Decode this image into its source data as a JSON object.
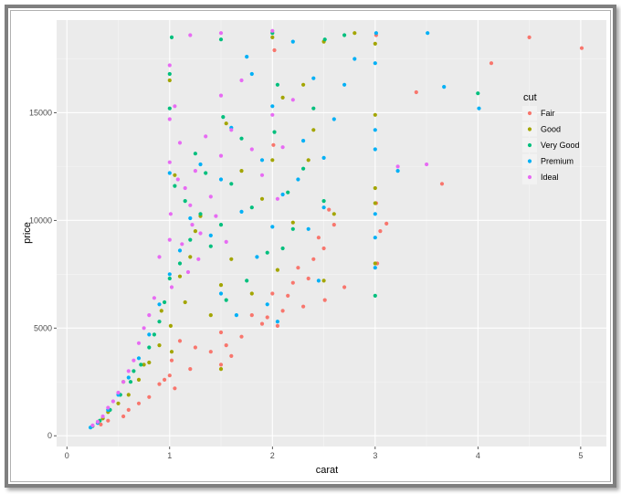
{
  "chart_data": {
    "type": "scatter",
    "title": "",
    "xlabel": "carat",
    "ylabel": "price",
    "xlim": [
      -0.1,
      5.25
    ],
    "ylim": [
      -500,
      19300
    ],
    "x_ticks": [
      0,
      1,
      2,
      3,
      4,
      5
    ],
    "x_tick_labels": [
      "0",
      "1",
      "2",
      "3",
      "4",
      "5"
    ],
    "y_ticks": [
      0,
      5000,
      10000,
      15000
    ],
    "y_tick_labels": [
      "0",
      "5000",
      "10000",
      "15000"
    ],
    "grid": true,
    "panel_background": "#ebebeb",
    "legend": {
      "title": "cut",
      "position": "right",
      "entries": [
        {
          "label": "Fair",
          "color": "#F8766D"
        },
        {
          "label": "Good",
          "color": "#A3A500"
        },
        {
          "label": "Very Good",
          "color": "#00BF7D"
        },
        {
          "label": "Premium",
          "color": "#00B0F6"
        },
        {
          "label": "Ideal",
          "color": "#E76BF3"
        }
      ]
    },
    "series": [
      {
        "name": "Fair",
        "color": "#F8766D",
        "points": [
          [
            5.01,
            18000
          ],
          [
            4.5,
            18500
          ],
          [
            4.13,
            17300
          ],
          [
            3.4,
            15950
          ],
          [
            3.65,
            11700
          ],
          [
            3.01,
            18600
          ],
          [
            3.01,
            10800
          ],
          [
            3.11,
            9850
          ],
          [
            3.02,
            8000
          ],
          [
            3.05,
            9500
          ],
          [
            2.02,
            17900
          ],
          [
            2.5,
            8700
          ],
          [
            2.51,
            6300
          ],
          [
            2.7,
            6900
          ],
          [
            2.4,
            8200
          ],
          [
            2.2,
            7100
          ],
          [
            2.1,
            5800
          ],
          [
            2.0,
            6600
          ],
          [
            1.9,
            5200
          ],
          [
            2.3,
            6000
          ],
          [
            2.35,
            7300
          ],
          [
            1.8,
            5600
          ],
          [
            1.7,
            4600
          ],
          [
            1.6,
            3700
          ],
          [
            1.55,
            4200
          ],
          [
            1.5,
            3300
          ],
          [
            1.5,
            4800
          ],
          [
            1.0,
            2800
          ],
          [
            1.02,
            3500
          ],
          [
            1.2,
            3100
          ],
          [
            0.9,
            2400
          ],
          [
            0.8,
            1800
          ],
          [
            0.7,
            1500
          ],
          [
            0.55,
            900
          ],
          [
            0.4,
            700
          ],
          [
            0.33,
            520
          ],
          [
            1.05,
            2200
          ],
          [
            2.05,
            5100
          ],
          [
            2.15,
            6500
          ],
          [
            2.45,
            9200
          ],
          [
            1.25,
            4100
          ],
          [
            1.4,
            3900
          ],
          [
            0.6,
            1200
          ],
          [
            1.1,
            4400
          ],
          [
            2.25,
            7800
          ],
          [
            2.01,
            13500
          ],
          [
            2.6,
            9800
          ],
          [
            1.95,
            5500
          ],
          [
            2.55,
            10500
          ],
          [
            0.95,
            2600
          ]
        ]
      },
      {
        "name": "Good",
        "color": "#A3A500",
        "points": [
          [
            2.8,
            18700
          ],
          [
            3.0,
            18200
          ],
          [
            3.0,
            14900
          ],
          [
            3.0,
            11500
          ],
          [
            3.0,
            10800
          ],
          [
            3.0,
            8000
          ],
          [
            2.0,
            18500
          ],
          [
            2.5,
            18300
          ],
          [
            2.3,
            16300
          ],
          [
            2.1,
            15700
          ],
          [
            2.0,
            12800
          ],
          [
            1.9,
            11000
          ],
          [
            1.6,
            8200
          ],
          [
            1.5,
            7000
          ],
          [
            1.5,
            3100
          ],
          [
            1.4,
            5600
          ],
          [
            1.2,
            8300
          ],
          [
            1.0,
            16500
          ],
          [
            1.01,
            5100
          ],
          [
            1.02,
            3900
          ],
          [
            0.9,
            4200
          ],
          [
            0.8,
            3400
          ],
          [
            0.7,
            2600
          ],
          [
            0.6,
            1900
          ],
          [
            0.5,
            1500
          ],
          [
            0.4,
            1100
          ],
          [
            0.3,
            600
          ],
          [
            2.2,
            9900
          ],
          [
            2.4,
            14200
          ],
          [
            1.7,
            12300
          ],
          [
            1.3,
            10200
          ],
          [
            1.1,
            7400
          ],
          [
            0.92,
            5800
          ],
          [
            2.05,
            7700
          ],
          [
            1.8,
            6600
          ],
          [
            2.6,
            10300
          ],
          [
            1.55,
            14500
          ],
          [
            2.5,
            7200
          ],
          [
            0.75,
            3300
          ],
          [
            1.15,
            6200
          ],
          [
            0.55,
            2500
          ],
          [
            0.35,
            800
          ],
          [
            1.05,
            12100
          ],
          [
            1.25,
            9500
          ],
          [
            2.35,
            12800
          ]
        ]
      },
      {
        "name": "Very Good",
        "color": "#00BF7D",
        "points": [
          [
            4.0,
            15900
          ],
          [
            3.0,
            6500
          ],
          [
            2.51,
            18400
          ],
          [
            2.7,
            18600
          ],
          [
            2.0,
            18700
          ],
          [
            1.5,
            18400
          ],
          [
            1.02,
            18500
          ],
          [
            1.0,
            16800
          ],
          [
            1.0,
            15200
          ],
          [
            2.3,
            12400
          ],
          [
            2.2,
            9600
          ],
          [
            2.5,
            10900
          ],
          [
            2.1,
            8700
          ],
          [
            1.8,
            10600
          ],
          [
            1.7,
            13800
          ],
          [
            1.6,
            11700
          ],
          [
            1.5,
            9800
          ],
          [
            1.4,
            8800
          ],
          [
            1.3,
            10300
          ],
          [
            1.2,
            9100
          ],
          [
            1.1,
            8000
          ],
          [
            1.0,
            7300
          ],
          [
            0.95,
            6200
          ],
          [
            0.9,
            5300
          ],
          [
            0.8,
            4100
          ],
          [
            0.72,
            3300
          ],
          [
            0.62,
            2500
          ],
          [
            0.52,
            1900
          ],
          [
            0.42,
            1200
          ],
          [
            0.32,
            700
          ],
          [
            0.25,
            450
          ],
          [
            1.05,
            11600
          ],
          [
            1.52,
            14800
          ],
          [
            2.02,
            14100
          ],
          [
            2.4,
            15200
          ],
          [
            1.25,
            13100
          ],
          [
            1.75,
            7200
          ],
          [
            2.05,
            16300
          ],
          [
            1.15,
            10900
          ],
          [
            0.85,
            4700
          ],
          [
            0.65,
            3000
          ],
          [
            1.35,
            12200
          ],
          [
            2.15,
            11300
          ],
          [
            1.95,
            8500
          ],
          [
            1.55,
            6300
          ]
        ]
      },
      {
        "name": "Premium",
        "color": "#00B0F6",
        "points": [
          [
            3.51,
            18700
          ],
          [
            4.01,
            15200
          ],
          [
            3.67,
            16200
          ],
          [
            3.01,
            18700
          ],
          [
            3.0,
            17300
          ],
          [
            3.0,
            14200
          ],
          [
            3.0,
            13300
          ],
          [
            3.0,
            10300
          ],
          [
            3.0,
            9200
          ],
          [
            3.0,
            7800
          ],
          [
            3.22,
            12300
          ],
          [
            2.8,
            17500
          ],
          [
            2.7,
            16300
          ],
          [
            2.6,
            14700
          ],
          [
            2.5,
            12900
          ],
          [
            2.5,
            10600
          ],
          [
            2.4,
            16600
          ],
          [
            2.3,
            13700
          ],
          [
            2.2,
            18300
          ],
          [
            2.1,
            11200
          ],
          [
            2.0,
            9700
          ],
          [
            2.0,
            15300
          ],
          [
            1.9,
            12800
          ],
          [
            1.8,
            16800
          ],
          [
            1.7,
            10400
          ],
          [
            1.6,
            14300
          ],
          [
            1.5,
            11900
          ],
          [
            1.5,
            6600
          ],
          [
            1.4,
            9300
          ],
          [
            1.3,
            12600
          ],
          [
            1.2,
            10100
          ],
          [
            1.1,
            8600
          ],
          [
            1.0,
            7500
          ],
          [
            1.0,
            12200
          ],
          [
            0.9,
            6100
          ],
          [
            0.8,
            4700
          ],
          [
            0.7,
            3600
          ],
          [
            0.6,
            2700
          ],
          [
            0.5,
            1900
          ],
          [
            0.4,
            1200
          ],
          [
            0.3,
            600
          ],
          [
            0.23,
            380
          ],
          [
            2.35,
            9600
          ],
          [
            2.45,
            7200
          ],
          [
            1.65,
            5600
          ],
          [
            1.95,
            6100
          ],
          [
            2.05,
            5300
          ],
          [
            1.85,
            8300
          ],
          [
            1.75,
            17600
          ],
          [
            2.25,
            11900
          ]
        ]
      },
      {
        "name": "Ideal",
        "color": "#E76BF3",
        "points": [
          [
            3.5,
            12600
          ],
          [
            3.22,
            12500
          ],
          [
            2.0,
            18800
          ],
          [
            1.5,
            18700
          ],
          [
            1.2,
            18600
          ],
          [
            1.0,
            17200
          ],
          [
            1.0,
            14700
          ],
          [
            1.0,
            12700
          ],
          [
            1.05,
            15300
          ],
          [
            1.1,
            13600
          ],
          [
            1.15,
            11500
          ],
          [
            1.2,
            10700
          ],
          [
            1.25,
            12300
          ],
          [
            1.3,
            9400
          ],
          [
            1.35,
            13900
          ],
          [
            1.4,
            11100
          ],
          [
            1.5,
            15800
          ],
          [
            1.5,
            13000
          ],
          [
            1.6,
            14200
          ],
          [
            1.7,
            16500
          ],
          [
            1.8,
            13300
          ],
          [
            1.9,
            12100
          ],
          [
            2.0,
            14900
          ],
          [
            2.1,
            13400
          ],
          [
            2.2,
            15600
          ],
          [
            1.0,
            9100
          ],
          [
            1.02,
            6900
          ],
          [
            0.9,
            8300
          ],
          [
            0.85,
            6400
          ],
          [
            0.8,
            5600
          ],
          [
            0.75,
            5000
          ],
          [
            0.7,
            4300
          ],
          [
            0.65,
            3500
          ],
          [
            0.6,
            3000
          ],
          [
            0.55,
            2500
          ],
          [
            0.5,
            2000
          ],
          [
            0.45,
            1600
          ],
          [
            0.4,
            1300
          ],
          [
            0.35,
            900
          ],
          [
            0.3,
            650
          ],
          [
            0.25,
            480
          ],
          [
            1.01,
            10300
          ],
          [
            1.08,
            11900
          ],
          [
            1.12,
            8900
          ],
          [
            1.18,
            7600
          ],
          [
            1.22,
            9800
          ],
          [
            1.28,
            8200
          ],
          [
            1.45,
            10200
          ],
          [
            1.55,
            9000
          ],
          [
            2.05,
            11000
          ]
        ]
      }
    ]
  }
}
